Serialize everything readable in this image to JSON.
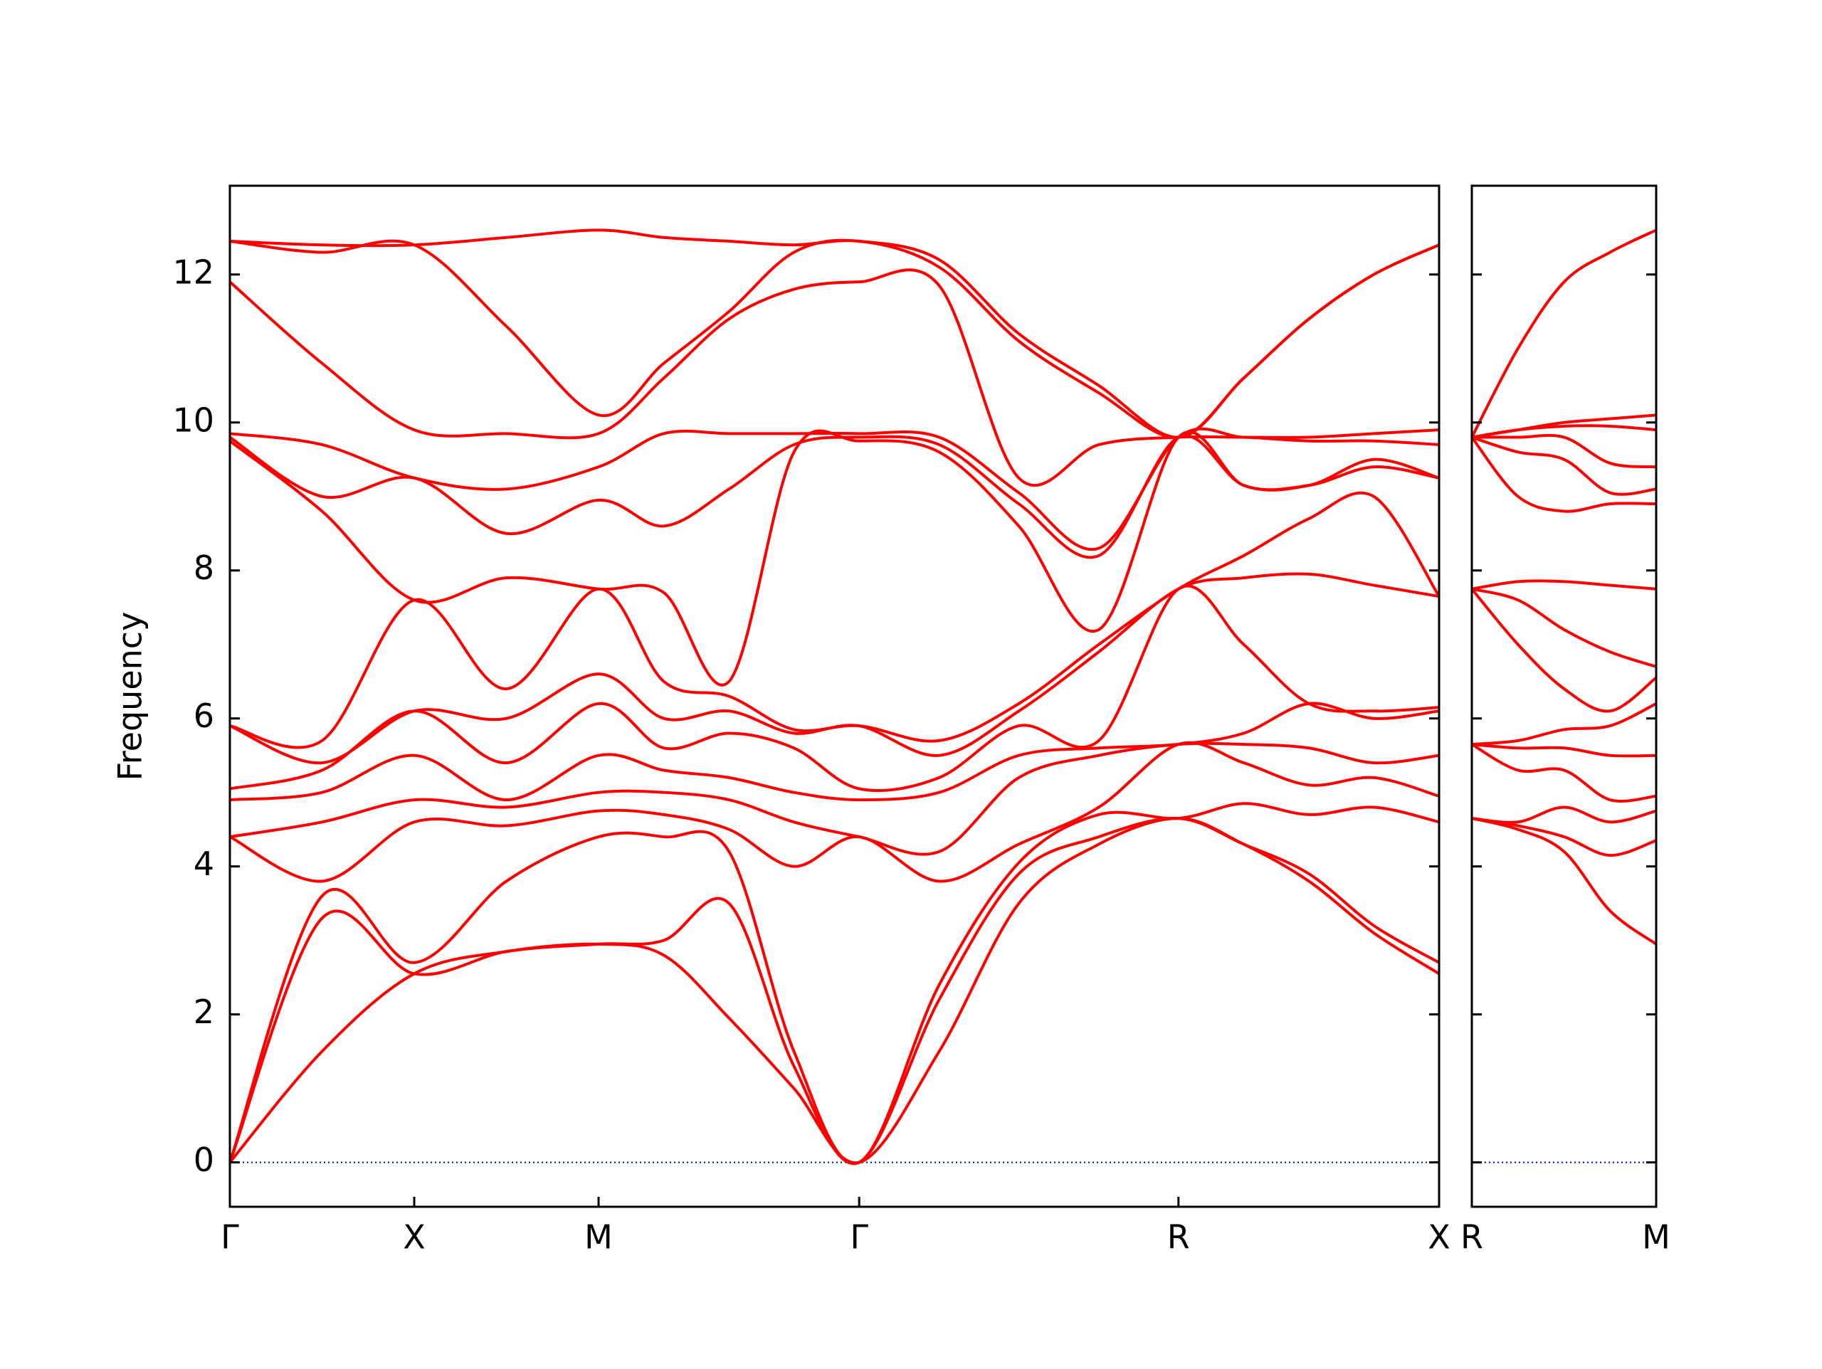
{
  "chart_data": [
    {
      "type": "line",
      "ylabel": "Frequency",
      "color": "#ff0000",
      "hline": 0,
      "hline_color": "#0000cc",
      "xlim": [
        0,
        3.28
      ],
      "ylim": [
        -0.6,
        13.2
      ],
      "yticks": [
        0,
        2,
        4,
        6,
        8,
        10,
        12
      ],
      "show_ytick_labels": true,
      "xticks": [
        {
          "value": 0,
          "label": "Γ"
        },
        {
          "value": 0.5,
          "label": "X"
        },
        {
          "value": 1.0,
          "label": "M"
        },
        {
          "value": 1.707,
          "label": "Γ"
        },
        {
          "value": 2.573,
          "label": "R"
        },
        {
          "value": 3.28,
          "label": "X"
        }
      ],
      "x": [
        0,
        0.25,
        0.5,
        0.75,
        1.0,
        1.177,
        1.354,
        1.53,
        1.707,
        1.924,
        2.14,
        2.357,
        2.573,
        2.75,
        2.927,
        3.103,
        3.28
      ],
      "series": [
        {
          "values": [
            0,
            1.5,
            2.55,
            2.85,
            2.95,
            2.8,
            1.95,
            1.0,
            0,
            1.5,
            3.5,
            4.3,
            4.65,
            4.3,
            3.8,
            3.1,
            2.55
          ]
        },
        {
          "values": [
            0,
            3.3,
            2.55,
            2.85,
            2.95,
            3.0,
            3.5,
            1.3,
            0,
            2.2,
            3.9,
            4.4,
            4.65,
            4.3,
            3.9,
            3.2,
            2.7
          ]
        },
        {
          "values": [
            0,
            3.6,
            2.7,
            3.8,
            4.4,
            4.4,
            4.2,
            1.5,
            0,
            2.4,
            4.05,
            4.7,
            4.65,
            4.85,
            4.7,
            4.8,
            4.6
          ]
        },
        {
          "values": [
            4.4,
            3.8,
            4.6,
            4.55,
            4.75,
            4.7,
            4.5,
            4.0,
            4.4,
            3.8,
            4.3,
            4.8,
            5.65,
            5.4,
            5.1,
            5.2,
            4.95
          ]
        },
        {
          "values": [
            4.4,
            4.6,
            4.9,
            4.8,
            5.0,
            5.0,
            4.9,
            4.6,
            4.4,
            4.2,
            5.2,
            5.5,
            5.65,
            5.65,
            5.6,
            5.4,
            5.5
          ]
        },
        {
          "values": [
            4.9,
            5.0,
            5.5,
            4.9,
            5.5,
            5.3,
            5.2,
            5.0,
            4.9,
            5.0,
            5.5,
            5.6,
            5.65,
            5.8,
            6.2,
            6.0,
            6.1
          ]
        },
        {
          "values": [
            5.05,
            5.3,
            6.1,
            5.4,
            6.2,
            5.6,
            5.8,
            5.6,
            5.05,
            5.2,
            5.9,
            5.7,
            7.75,
            7.0,
            6.2,
            6.1,
            6.15
          ]
        },
        {
          "values": [
            5.9,
            5.4,
            6.1,
            6.0,
            6.6,
            6.0,
            6.1,
            5.8,
            5.9,
            5.5,
            6.1,
            6.9,
            7.75,
            7.9,
            7.95,
            7.8,
            7.65
          ]
        },
        {
          "values": [
            5.9,
            5.7,
            7.6,
            6.4,
            7.75,
            6.5,
            6.3,
            5.85,
            5.9,
            5.7,
            6.2,
            7.0,
            7.75,
            8.2,
            8.7,
            9.0,
            7.65
          ]
        },
        {
          "values": [
            9.75,
            8.8,
            7.6,
            7.9,
            7.75,
            7.7,
            6.5,
            9.6,
            9.75,
            9.6,
            8.6,
            7.2,
            9.8,
            9.15,
            9.15,
            9.4,
            9.25
          ]
        },
        {
          "values": [
            9.8,
            9.0,
            9.25,
            8.5,
            8.95,
            8.6,
            9.1,
            9.7,
            9.8,
            9.7,
            8.9,
            8.2,
            9.8,
            9.15,
            9.15,
            9.5,
            9.25
          ]
        },
        {
          "values": [
            9.85,
            9.7,
            9.25,
            9.1,
            9.4,
            9.85,
            9.85,
            9.85,
            9.85,
            9.8,
            9.05,
            8.3,
            9.8,
            9.8,
            9.75,
            9.75,
            9.7
          ]
        },
        {
          "values": [
            11.9,
            10.8,
            9.9,
            9.85,
            9.85,
            10.6,
            11.4,
            11.8,
            11.9,
            11.85,
            9.25,
            9.7,
            9.8,
            9.8,
            9.8,
            9.85,
            9.9
          ]
        },
        {
          "values": [
            12.45,
            12.3,
            12.4,
            11.3,
            10.1,
            10.8,
            11.5,
            12.3,
            12.45,
            12.1,
            11.1,
            10.4,
            9.8,
            10.6,
            11.4,
            12.0,
            12.4
          ]
        },
        {
          "values": [
            12.45,
            12.4,
            12.4,
            12.5,
            12.6,
            12.5,
            12.45,
            12.4,
            12.45,
            12.2,
            11.2,
            10.5,
            9.8,
            10.6,
            11.4,
            12.0,
            12.4
          ]
        }
      ]
    },
    {
      "type": "line",
      "color": "#ff0000",
      "hline": 0,
      "hline_color": "#0000cc",
      "xlim": [
        0,
        0.707
      ],
      "ylim": [
        -0.6,
        13.2
      ],
      "yticks": [
        0,
        2,
        4,
        6,
        8,
        10,
        12
      ],
      "show_ytick_labels": false,
      "xticks": [
        {
          "value": 0,
          "label": "R"
        },
        {
          "value": 0.707,
          "label": "M"
        }
      ],
      "x": [
        0,
        0.177,
        0.354,
        0.53,
        0.707
      ],
      "series": [
        {
          "values": [
            4.65,
            4.5,
            4.2,
            3.4,
            2.95
          ]
        },
        {
          "values": [
            4.65,
            4.55,
            4.4,
            4.15,
            4.35
          ]
        },
        {
          "values": [
            4.65,
            4.6,
            4.8,
            4.6,
            4.75
          ]
        },
        {
          "values": [
            5.65,
            5.3,
            5.3,
            4.9,
            4.95
          ]
        },
        {
          "values": [
            5.65,
            5.6,
            5.6,
            5.5,
            5.5
          ]
        },
        {
          "values": [
            5.65,
            5.7,
            5.85,
            5.9,
            6.2
          ]
        },
        {
          "values": [
            7.75,
            7.0,
            6.4,
            6.1,
            6.55
          ]
        },
        {
          "values": [
            7.75,
            7.6,
            7.2,
            6.9,
            6.7
          ]
        },
        {
          "values": [
            7.75,
            7.85,
            7.85,
            7.8,
            7.75
          ]
        },
        {
          "values": [
            9.8,
            9.0,
            8.8,
            8.9,
            8.9
          ]
        },
        {
          "values": [
            9.8,
            9.6,
            9.5,
            9.05,
            9.1
          ]
        },
        {
          "values": [
            9.8,
            9.8,
            9.8,
            9.45,
            9.4
          ]
        },
        {
          "values": [
            9.8,
            9.9,
            9.95,
            9.95,
            9.9
          ]
        },
        {
          "values": [
            9.8,
            9.9,
            10.0,
            10.05,
            10.1
          ]
        },
        {
          "values": [
            9.8,
            11.0,
            11.9,
            12.3,
            12.6
          ]
        }
      ]
    }
  ]
}
